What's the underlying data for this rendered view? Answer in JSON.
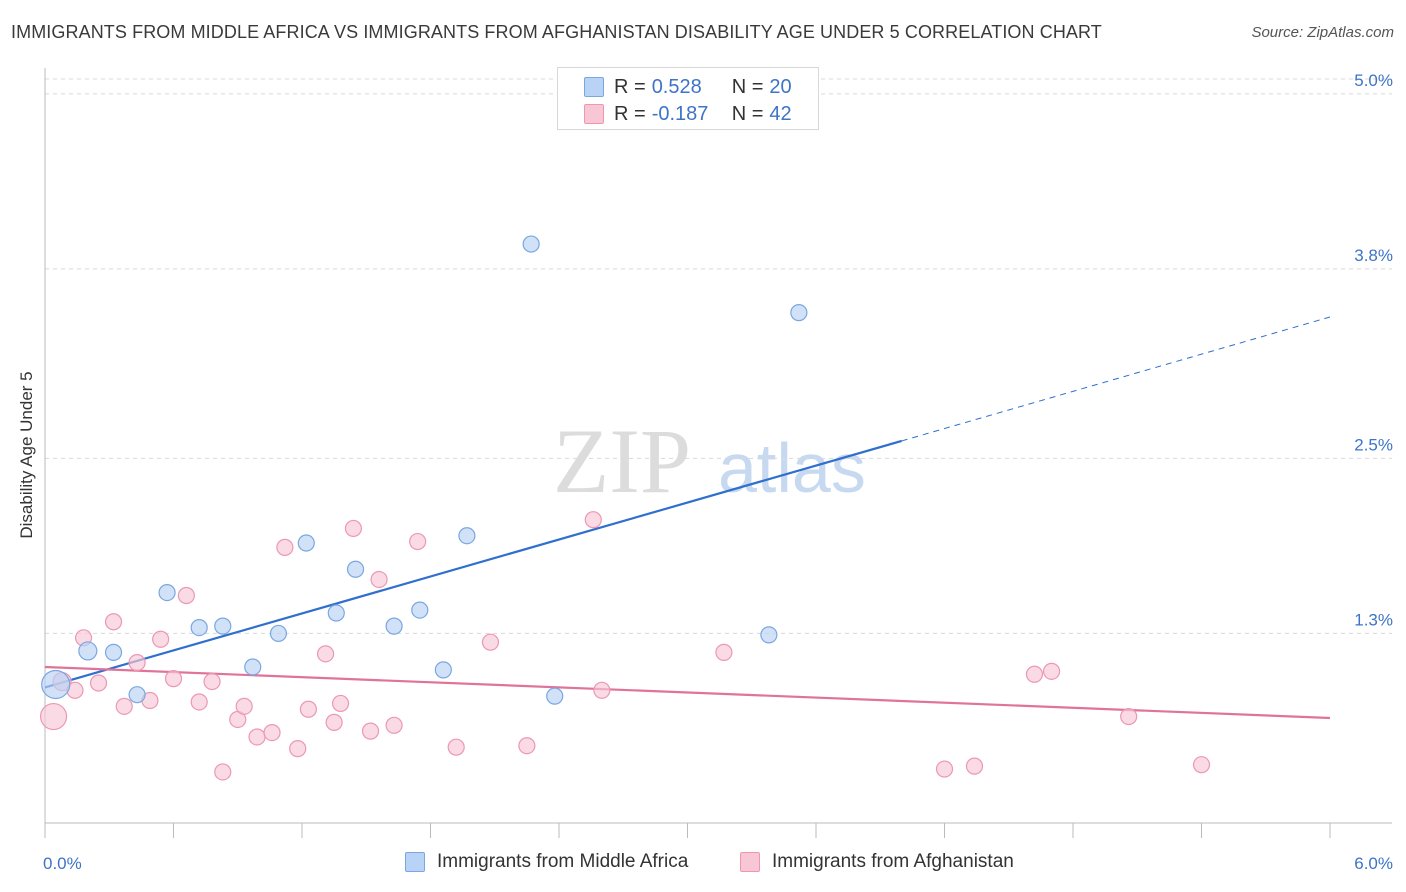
{
  "title": "IMMIGRANTS FROM MIDDLE AFRICA VS IMMIGRANTS FROM AFGHANISTAN DISABILITY AGE UNDER 5 CORRELATION CHART",
  "source": "Source: ZipAtlas.com",
  "watermark": {
    "zip": "ZIP",
    "atlas": "atlas"
  },
  "legend": {
    "series": [
      {
        "r_label": "R =",
        "r_value": "0.528",
        "n_label": "N =",
        "n_value": "20"
      },
      {
        "r_label": "R =",
        "r_value": "-0.187",
        "n_label": "N =",
        "n_value": "42"
      }
    ]
  },
  "colors": {
    "blue_fill": "#b8d3f5",
    "blue_stroke": "#7aa7e0",
    "blue_line": "#2f6fce",
    "pink_fill": "#f8c6d5",
    "pink_stroke": "#ec98b2",
    "pink_line": "#e0739a",
    "tick_label": "#3d74c7",
    "grid": "#d9d9d9"
  },
  "chart_data": {
    "type": "scatter",
    "title": "IMMIGRANTS FROM MIDDLE AFRICA VS IMMIGRANTS FROM AFGHANISTAN DISABILITY AGE UNDER 5 CORRELATION CHART",
    "xlabel": "",
    "ylabel": "Disability Age Under 5",
    "xlim": [
      0,
      6.0
    ],
    "ylim": [
      0,
      5.15
    ],
    "x_tick_labels": [
      {
        "value": 0,
        "label": "0.0%"
      },
      {
        "value": 6.0,
        "label": "6.0%"
      }
    ],
    "y_ticks": [
      {
        "value": 1.3,
        "label": "1.3%"
      },
      {
        "value": 2.5,
        "label": "2.5%"
      },
      {
        "value": 3.8,
        "label": "3.8%"
      },
      {
        "value": 5.0,
        "label": "5.0%"
      }
    ],
    "grid": true,
    "legend_position": "bottom-center",
    "series": [
      {
        "name": "Immigrants from Middle Africa",
        "color": "#b8d3f5",
        "points": [
          [
            0.05,
            0.95,
            14
          ],
          [
            0.2,
            1.18,
            9
          ],
          [
            0.32,
            1.17,
            8
          ],
          [
            0.43,
            0.88,
            8
          ],
          [
            0.57,
            1.58,
            8
          ],
          [
            0.72,
            1.34,
            8
          ],
          [
            0.83,
            1.35,
            8
          ],
          [
            0.97,
            1.07,
            8
          ],
          [
            1.09,
            1.3,
            8
          ],
          [
            1.22,
            1.92,
            8
          ],
          [
            1.36,
            1.44,
            8
          ],
          [
            1.45,
            1.74,
            8
          ],
          [
            1.63,
            1.35,
            8
          ],
          [
            1.75,
            1.46,
            8
          ],
          [
            1.86,
            1.05,
            8
          ],
          [
            1.97,
            1.97,
            8
          ],
          [
            2.27,
            3.97,
            8
          ],
          [
            2.38,
            0.87,
            8
          ],
          [
            3.38,
            1.29,
            8
          ],
          [
            3.52,
            3.5,
            8
          ]
        ],
        "trend": {
          "x_start": 0.0,
          "y_start": 0.93,
          "x_solid_end": 4.0,
          "y_solid_end": 2.62,
          "x_end": 6.0,
          "y_end": 3.47
        }
      },
      {
        "name": "Immigrants from Afghanistan",
        "color": "#f8c6d5",
        "points": [
          [
            0.04,
            0.73,
            13
          ],
          [
            0.08,
            0.97,
            9
          ],
          [
            0.14,
            0.91,
            8
          ],
          [
            0.18,
            1.27,
            8
          ],
          [
            0.25,
            0.96,
            8
          ],
          [
            0.32,
            1.38,
            8
          ],
          [
            0.37,
            0.8,
            8
          ],
          [
            0.43,
            1.1,
            8
          ],
          [
            0.49,
            0.84,
            8
          ],
          [
            0.54,
            1.26,
            8
          ],
          [
            0.6,
            0.99,
            8
          ],
          [
            0.66,
            1.56,
            8
          ],
          [
            0.72,
            0.83,
            8
          ],
          [
            0.78,
            0.97,
            8
          ],
          [
            0.83,
            0.35,
            8
          ],
          [
            0.9,
            0.71,
            8
          ],
          [
            0.93,
            0.8,
            8
          ],
          [
            0.99,
            0.59,
            8
          ],
          [
            1.06,
            0.62,
            8
          ],
          [
            1.12,
            1.89,
            8
          ],
          [
            1.18,
            0.51,
            8
          ],
          [
            1.23,
            0.78,
            8
          ],
          [
            1.31,
            1.16,
            8
          ],
          [
            1.35,
            0.69,
            8
          ],
          [
            1.38,
            0.82,
            8
          ],
          [
            1.44,
            2.02,
            8
          ],
          [
            1.52,
            0.63,
            8
          ],
          [
            1.56,
            1.67,
            8
          ],
          [
            1.63,
            0.67,
            8
          ],
          [
            1.74,
            1.93,
            8
          ],
          [
            1.92,
            0.52,
            8
          ],
          [
            2.08,
            1.24,
            8
          ],
          [
            2.25,
            0.53,
            8
          ],
          [
            2.56,
            2.08,
            8
          ],
          [
            2.6,
            0.91,
            8
          ],
          [
            3.17,
            1.17,
            8
          ],
          [
            4.2,
            0.37,
            8
          ],
          [
            4.34,
            0.39,
            8
          ],
          [
            4.62,
            1.02,
            8
          ],
          [
            4.7,
            1.04,
            8
          ],
          [
            5.06,
            0.73,
            8
          ],
          [
            5.4,
            0.4,
            8
          ]
        ],
        "trend": {
          "x_start": 0.0,
          "y_start": 1.07,
          "x_end": 6.0,
          "y_end": 0.72
        }
      }
    ]
  }
}
